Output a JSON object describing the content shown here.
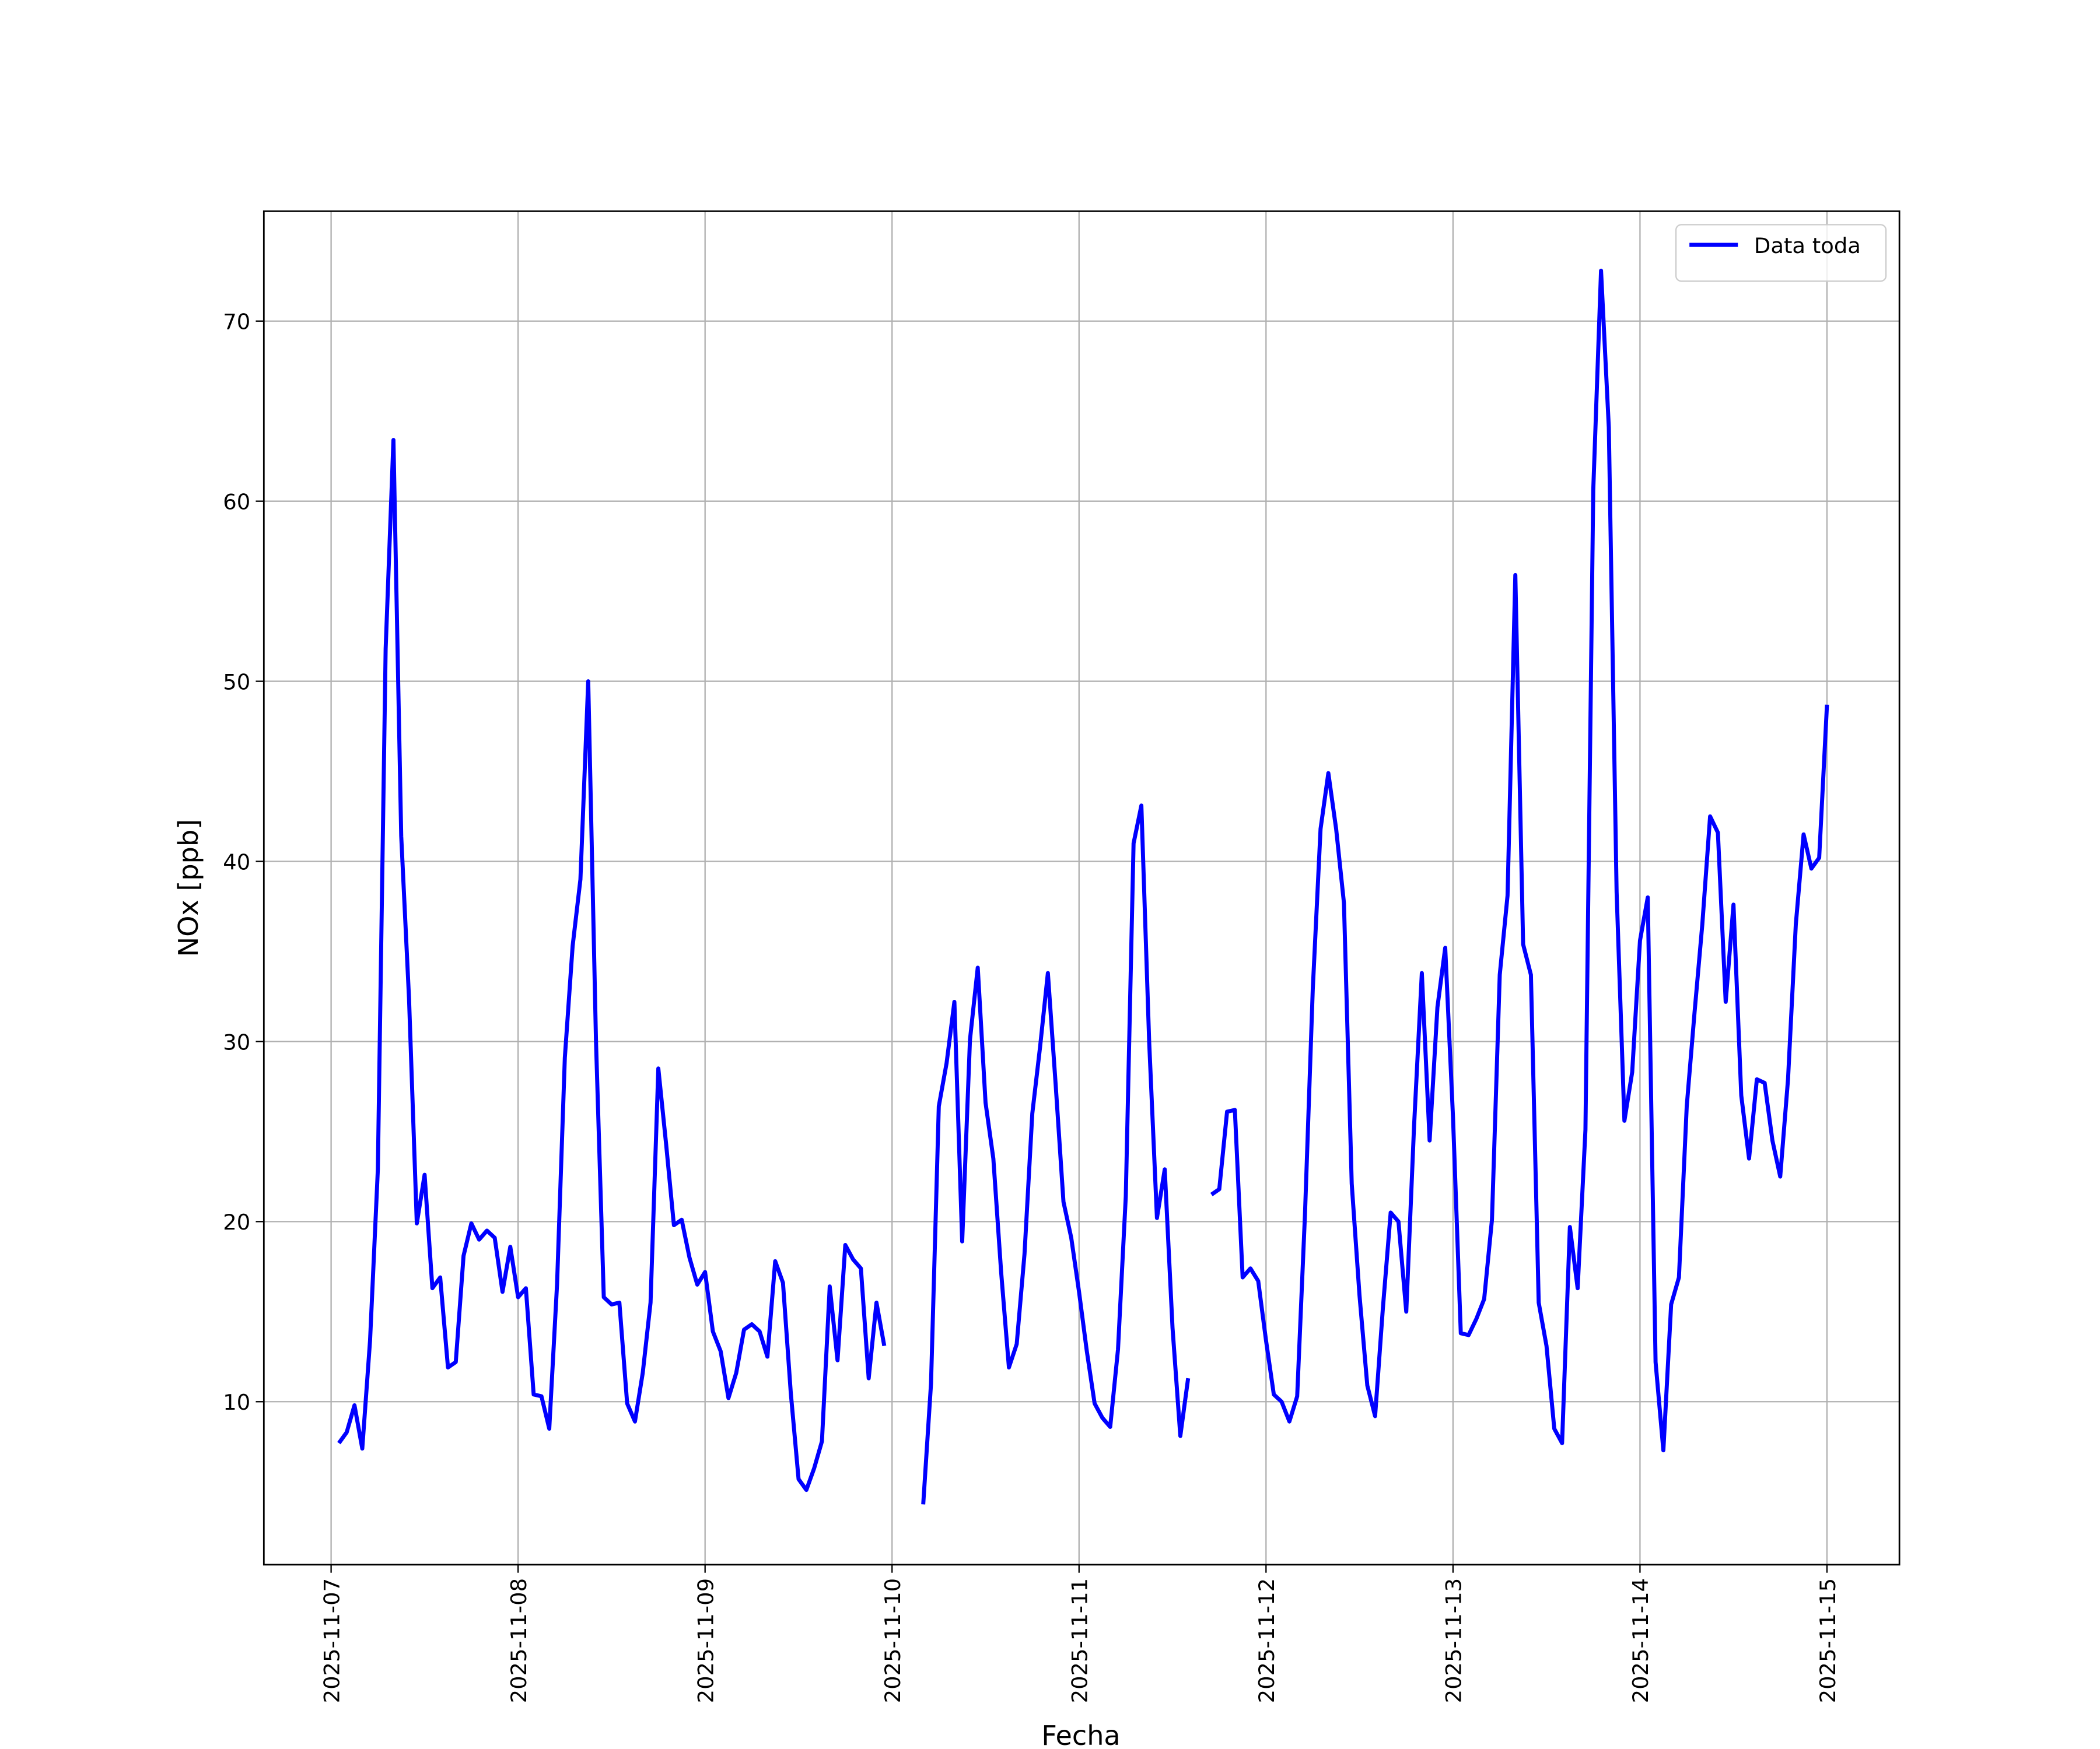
{
  "chart_data": {
    "type": "line",
    "xlabel": "Fecha",
    "ylabel": "NOx [ppb]",
    "x": [
      "2025-11-07 01:00",
      "2025-11-07 02:00",
      "2025-11-07 03:00",
      "2025-11-07 04:00",
      "2025-11-07 05:00",
      "2025-11-07 06:00",
      "2025-11-07 07:00",
      "2025-11-07 08:00",
      "2025-11-07 09:00",
      "2025-11-07 10:00",
      "2025-11-07 11:00",
      "2025-11-07 12:00",
      "2025-11-07 13:00",
      "2025-11-07 14:00",
      "2025-11-07 15:00",
      "2025-11-07 16:00",
      "2025-11-07 17:00",
      "2025-11-07 18:00",
      "2025-11-07 19:00",
      "2025-11-07 20:00",
      "2025-11-07 21:00",
      "2025-11-07 22:00",
      "2025-11-07 23:00",
      "2025-11-08 00:00",
      "2025-11-08 01:00",
      "2025-11-08 02:00",
      "2025-11-08 03:00",
      "2025-11-08 04:00",
      "2025-11-08 05:00",
      "2025-11-08 06:00",
      "2025-11-08 07:00",
      "2025-11-08 08:00",
      "2025-11-08 09:00",
      "2025-11-08 10:00",
      "2025-11-08 11:00",
      "2025-11-08 12:00",
      "2025-11-08 13:00",
      "2025-11-08 14:00",
      "2025-11-08 15:00",
      "2025-11-08 16:00",
      "2025-11-08 17:00",
      "2025-11-08 18:00",
      "2025-11-08 19:00",
      "2025-11-08 20:00",
      "2025-11-08 21:00",
      "2025-11-08 22:00",
      "2025-11-08 23:00",
      "2025-11-09 00:00",
      "2025-11-09 01:00",
      "2025-11-09 02:00",
      "2025-11-09 03:00",
      "2025-11-09 04:00",
      "2025-11-09 05:00",
      "2025-11-09 06:00",
      "2025-11-09 07:00",
      "2025-11-09 08:00",
      "2025-11-09 09:00",
      "2025-11-09 10:00",
      "2025-11-09 11:00",
      "2025-11-09 12:00",
      "2025-11-09 13:00",
      "2025-11-09 14:00",
      "2025-11-09 15:00",
      "2025-11-09 16:00",
      "2025-11-09 17:00",
      "2025-11-09 18:00",
      "2025-11-09 19:00",
      "2025-11-09 20:00",
      "2025-11-09 21:00",
      "2025-11-09 22:00",
      "2025-11-09 23:00",
      "2025-11-10 00:00",
      "2025-11-10 01:00",
      "2025-11-10 02:00",
      "2025-11-10 03:00",
      "2025-11-10 04:00",
      "2025-11-10 05:00",
      "2025-11-10 06:00",
      "2025-11-10 07:00",
      "2025-11-10 08:00",
      "2025-11-10 09:00",
      "2025-11-10 10:00",
      "2025-11-10 11:00",
      "2025-11-10 12:00",
      "2025-11-10 13:00",
      "2025-11-10 14:00",
      "2025-11-10 15:00",
      "2025-11-10 16:00",
      "2025-11-10 17:00",
      "2025-11-10 18:00",
      "2025-11-10 19:00",
      "2025-11-10 20:00",
      "2025-11-10 21:00",
      "2025-11-10 22:00",
      "2025-11-10 23:00",
      "2025-11-11 00:00",
      "2025-11-11 01:00",
      "2025-11-11 02:00",
      "2025-11-11 03:00",
      "2025-11-11 04:00",
      "2025-11-11 05:00",
      "2025-11-11 06:00",
      "2025-11-11 07:00",
      "2025-11-11 08:00",
      "2025-11-11 09:00",
      "2025-11-11 10:00",
      "2025-11-11 11:00",
      "2025-11-11 12:00",
      "2025-11-11 13:00",
      "2025-11-11 14:00",
      "2025-11-11 15:00",
      "2025-11-11 16:00",
      "2025-11-11 17:00",
      "2025-11-11 18:00",
      "2025-11-11 19:00",
      "2025-11-11 20:00",
      "2025-11-11 21:00",
      "2025-11-11 22:00",
      "2025-11-11 23:00",
      "2025-11-12 00:00",
      "2025-11-12 01:00",
      "2025-11-12 02:00",
      "2025-11-12 03:00",
      "2025-11-12 04:00",
      "2025-11-12 05:00",
      "2025-11-12 06:00",
      "2025-11-12 07:00",
      "2025-11-12 08:00",
      "2025-11-12 09:00",
      "2025-11-12 10:00",
      "2025-11-12 11:00",
      "2025-11-12 12:00",
      "2025-11-12 13:00",
      "2025-11-12 14:00",
      "2025-11-12 15:00",
      "2025-11-12 16:00",
      "2025-11-12 17:00",
      "2025-11-12 18:00",
      "2025-11-12 19:00",
      "2025-11-12 20:00",
      "2025-11-12 21:00",
      "2025-11-12 22:00",
      "2025-11-12 23:00",
      "2025-11-13 00:00",
      "2025-11-13 01:00",
      "2025-11-13 02:00",
      "2025-11-13 03:00",
      "2025-11-13 04:00",
      "2025-11-13 05:00",
      "2025-11-13 06:00",
      "2025-11-13 07:00",
      "2025-11-13 08:00",
      "2025-11-13 09:00",
      "2025-11-13 10:00",
      "2025-11-13 11:00",
      "2025-11-13 12:00",
      "2025-11-13 13:00",
      "2025-11-13 14:00",
      "2025-11-13 15:00",
      "2025-11-13 16:00",
      "2025-11-13 17:00",
      "2025-11-13 18:00",
      "2025-11-13 19:00",
      "2025-11-13 20:00",
      "2025-11-13 21:00",
      "2025-11-13 22:00",
      "2025-11-13 23:00",
      "2025-11-14 00:00",
      "2025-11-14 01:00",
      "2025-11-14 02:00",
      "2025-11-14 03:00",
      "2025-11-14 04:00",
      "2025-11-14 05:00",
      "2025-11-14 06:00",
      "2025-11-14 07:00",
      "2025-11-14 08:00",
      "2025-11-14 09:00",
      "2025-11-14 10:00",
      "2025-11-14 11:00",
      "2025-11-14 12:00",
      "2025-11-14 13:00",
      "2025-11-14 14:00",
      "2025-11-14 15:00",
      "2025-11-14 16:00",
      "2025-11-14 17:00",
      "2025-11-14 18:00",
      "2025-11-14 19:00",
      "2025-11-14 20:00",
      "2025-11-14 21:00",
      "2025-11-14 22:00",
      "2025-11-14 23:00",
      "2025-11-15 00:00"
    ],
    "series": [
      {
        "name": "Data toda",
        "color": "#0000ff",
        "values": [
          7.7,
          8.3,
          9.8,
          7.4,
          13.4,
          22.9,
          51.8,
          63.4,
          41.4,
          32.4,
          19.9,
          22.6,
          16.3,
          16.9,
          11.9,
          12.2,
          18.1,
          19.9,
          19.0,
          19.5,
          19.1,
          16.1,
          18.6,
          15.8,
          16.3,
          10.4,
          10.3,
          8.5,
          16.5,
          29.1,
          35.3,
          39.0,
          50.0,
          30.0,
          15.8,
          15.4,
          15.5,
          9.9,
          8.9,
          11.6,
          15.5,
          28.5,
          24.3,
          19.8,
          20.1,
          18.0,
          16.5,
          17.2,
          13.9,
          12.8,
          10.2,
          11.6,
          14.0,
          14.3,
          13.9,
          12.5,
          17.8,
          16.6,
          10.5,
          5.7,
          5.1,
          6.3,
          7.8,
          16.4,
          12.3,
          18.7,
          17.9,
          17.4,
          11.3,
          15.5,
          13.1,
          null,
          null,
          null,
          null,
          4.3,
          11.0,
          26.4,
          28.8,
          32.2,
          18.9,
          30.1,
          34.1,
          26.6,
          23.5,
          17.2,
          11.9,
          13.2,
          18.2,
          26.0,
          29.7,
          33.8,
          27.6,
          21.1,
          19.1,
          16.1,
          12.8,
          9.9,
          9.1,
          8.6,
          12.9,
          21.4,
          41.0,
          43.1,
          30.0,
          20.2,
          22.9,
          14.1,
          8.1,
          11.3,
          null,
          null,
          21.5,
          21.8,
          26.1,
          26.2,
          16.9,
          17.4,
          16.7,
          13.4,
          10.4,
          10.0,
          8.9,
          10.3,
          20.4,
          32.9,
          41.8,
          44.9,
          41.8,
          37.7,
          22.1,
          15.9,
          10.9,
          9.2,
          15.2,
          20.5,
          20.0,
          15.0,
          25.3,
          33.8,
          24.5,
          31.9,
          35.2,
          25.8,
          13.8,
          13.7,
          14.6,
          15.7,
          20.1,
          33.7,
          38.1,
          55.9,
          35.4,
          33.7,
          15.5,
          13.1,
          8.5,
          7.7,
          19.7,
          16.3,
          25.1,
          60.6,
          72.8,
          64.1,
          38.3,
          25.6,
          28.3,
          35.6,
          38.0,
          12.2,
          7.3,
          15.4,
          16.9,
          26.4,
          31.6,
          36.5,
          42.5,
          41.6,
          32.2,
          37.6,
          27.0,
          23.5,
          27.9,
          27.7,
          24.5,
          22.5,
          27.9,
          36.5,
          41.5,
          39.6,
          40.2,
          48.7
        ]
      }
    ],
    "xlim": [
      "2025-11-06 15:22",
      "2025-11-15 09:18"
    ],
    "xticks": [
      "2025-11-07",
      "2025-11-08",
      "2025-11-09",
      "2025-11-10",
      "2025-11-11",
      "2025-11-12",
      "2025-11-13",
      "2025-11-14",
      "2025-11-15"
    ],
    "ylim": [
      0.95,
      76.1
    ],
    "yticks": [
      10,
      20,
      30,
      40,
      50,
      60,
      70
    ],
    "grid": true,
    "legend": "upper right"
  }
}
